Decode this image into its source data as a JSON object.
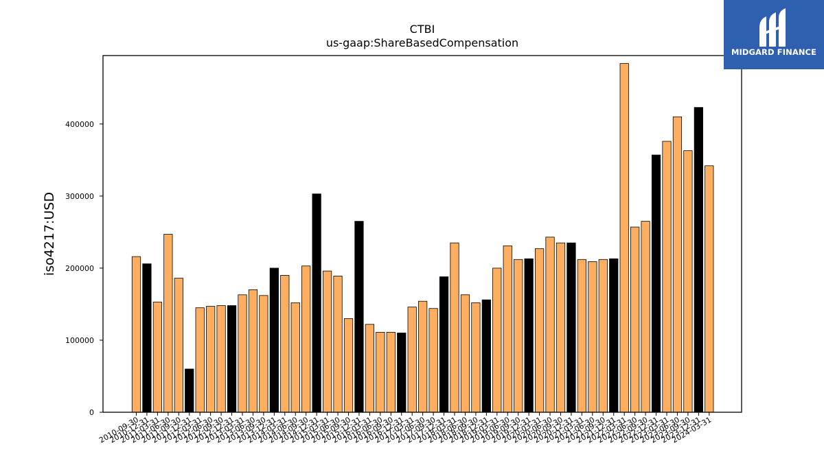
{
  "chart_data": {
    "type": "bar",
    "title": "CTBI",
    "subtitle": "us-gaap:ShareBasedCompensation",
    "xlabel": "",
    "ylabel": "iso4217:USD",
    "ylim": [
      0,
      495000
    ],
    "yticks": [
      0,
      100000,
      200000,
      300000,
      400000
    ],
    "grid": false,
    "colors": {
      "primary": "#fdae61",
      "highlight": "#000000",
      "edge": "#000000"
    },
    "categories": [
      "2010-09-30",
      "2010-12-31",
      "2011-03-31",
      "2011-06-30",
      "2011-09-30",
      "2011-12-31",
      "2012-03-31",
      "2012-06-30",
      "2012-09-30",
      "2012-12-31",
      "2013-03-31",
      "2013-06-30",
      "2013-09-30",
      "2013-12-31",
      "2014-03-31",
      "2014-06-30",
      "2014-09-30",
      "2014-12-31",
      "2015-03-31",
      "2015-06-30",
      "2015-09-30",
      "2015-12-31",
      "2016-03-31",
      "2016-06-30",
      "2016-09-30",
      "2016-12-31",
      "2017-03-31",
      "2017-06-30",
      "2017-09-30",
      "2017-12-31",
      "2018-03-31",
      "2018-06-30",
      "2018-09-30",
      "2018-12-31",
      "2019-03-31",
      "2019-06-30",
      "2019-09-30",
      "2019-12-31",
      "2020-03-31",
      "2020-06-30",
      "2020-09-30",
      "2020-12-31",
      "2021-03-31",
      "2021-06-30",
      "2021-09-30",
      "2021-12-31",
      "2022-03-31",
      "2022-06-30",
      "2022-09-30",
      "2022-12-31",
      "2023-03-31",
      "2023-06-30",
      "2023-09-30",
      "2023-12-31",
      "2024-03-31"
    ],
    "values": [
      216000,
      206000,
      153000,
      247000,
      186000,
      60000,
      145000,
      147000,
      148000,
      148000,
      163000,
      170000,
      162000,
      200000,
      190000,
      152000,
      203000,
      303000,
      196000,
      189000,
      130000,
      265000,
      122000,
      111000,
      111000,
      110000,
      146000,
      154000,
      144000,
      188000,
      235000,
      163000,
      152000,
      156000,
      200000,
      231000,
      212000,
      213000,
      227000,
      243000,
      235000,
      235000,
      212000,
      209000,
      212000,
      213000,
      484000,
      257000,
      265000,
      357000,
      376000,
      410000,
      363000,
      423000,
      342000
    ],
    "highlighted": [
      false,
      true,
      false,
      false,
      false,
      true,
      false,
      false,
      false,
      true,
      false,
      false,
      false,
      true,
      false,
      false,
      false,
      true,
      false,
      false,
      false,
      true,
      false,
      false,
      false,
      true,
      false,
      false,
      false,
      true,
      false,
      false,
      false,
      true,
      false,
      false,
      false,
      true,
      false,
      false,
      false,
      true,
      false,
      false,
      false,
      true,
      false,
      false,
      false,
      true,
      false,
      false,
      false,
      true,
      false
    ]
  },
  "logo": {
    "text": "MIDGARD FINANCE",
    "icon": "midgard-logo-icon"
  }
}
